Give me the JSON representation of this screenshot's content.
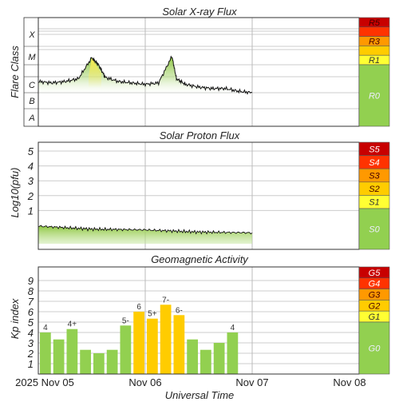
{
  "chart_data": [
    {
      "type": "area",
      "title": "Solar X-ray Flux",
      "ylabel": "Flare Class",
      "y_ticks": [
        "A",
        "B",
        "C",
        "M",
        "X"
      ],
      "scale_labels": [
        "R5",
        "R4",
        "R3",
        "R2",
        "R1",
        "R0"
      ],
      "scale_colors": [
        "#c80000",
        "#ff3300",
        "#ff9900",
        "#ffcc00",
        "#ffff33",
        "#92d050"
      ],
      "fill_color": "#8dc63f",
      "series": [
        {
          "x": [
            "2025-11-05 00:00",
            "2025-11-05 03:00",
            "2025-11-05 06:00",
            "2025-11-05 09:00",
            "2025-11-05 12:00",
            "2025-11-05 13:30",
            "2025-11-05 15:00",
            "2025-11-05 18:00",
            "2025-11-05 21:00",
            "2025-11-06 00:00",
            "2025-11-06 03:00",
            "2025-11-06 06:00",
            "2025-11-06 07:00",
            "2025-11-06 09:00",
            "2025-11-06 12:00",
            "2025-11-06 15:00",
            "2025-11-06 18:00",
            "2025-11-06 21:00",
            "2025-11-07 00:00"
          ],
          "values": [
            2.4,
            2.35,
            2.4,
            2.5,
            3.25,
            3.0,
            2.55,
            2.4,
            2.35,
            2.3,
            2.35,
            3.3,
            2.5,
            2.3,
            2.2,
            2.15,
            2.15,
            2.05,
            2.0
          ]
        }
      ]
    },
    {
      "type": "area",
      "title": "Solar Proton Flux",
      "ylabel": "Log10(pfu)",
      "y_ticks": [
        "1",
        "2",
        "3",
        "4",
        "5"
      ],
      "scale_labels": [
        "S5",
        "S4",
        "S3",
        "S2",
        "S1",
        "S0"
      ],
      "scale_colors": [
        "#c80000",
        "#ff3300",
        "#ff9900",
        "#ffcc00",
        "#ffff33",
        "#92d050"
      ],
      "fill_color": "#8dc63f",
      "series": [
        {
          "x": [
            "2025-11-05 00:00",
            "2025-11-05 12:00",
            "2025-11-06 00:00",
            "2025-11-06 12:00",
            "2025-11-07 00:00"
          ],
          "values": [
            -0.05,
            -0.25,
            -0.3,
            -0.45,
            -0.5
          ]
        }
      ]
    },
    {
      "type": "bar",
      "title": "Geomagnetic Activity",
      "ylabel": "Kp index",
      "y_ticks": [
        "1",
        "2",
        "3",
        "4",
        "5",
        "6",
        "7",
        "8",
        "9"
      ],
      "scale_labels": [
        "G5",
        "G4",
        "G3",
        "G2",
        "G1",
        "G0"
      ],
      "scale_colors": [
        "#c80000",
        "#ff3300",
        "#ff9900",
        "#ffcc00",
        "#ffff33",
        "#92d050"
      ],
      "bar_colors": {
        "quiet": "#92d050",
        "storm": "#ffcc00"
      },
      "x": [
        "2025-11-05 00:00",
        "2025-11-05 03:00",
        "2025-11-05 06:00",
        "2025-11-05 09:00",
        "2025-11-05 12:00",
        "2025-11-05 15:00",
        "2025-11-05 18:00",
        "2025-11-05 21:00",
        "2025-11-06 00:00",
        "2025-11-06 03:00",
        "2025-11-06 06:00",
        "2025-11-06 09:00",
        "2025-11-06 12:00",
        "2025-11-06 15:00",
        "2025-11-06 18:00",
        "2025-11-06 21:00"
      ],
      "values": [
        4.0,
        3.33,
        4.33,
        2.33,
        2.0,
        2.33,
        4.67,
        6.0,
        5.33,
        6.67,
        5.67,
        3.33,
        2.33,
        3.0,
        4.0,
        0
      ],
      "data_labels": [
        "4",
        "",
        "4+",
        "",
        "",
        "",
        "5-",
        "6",
        "5+",
        "7-",
        "6-",
        "",
        "",
        "",
        "4",
        ""
      ]
    }
  ],
  "x_axis": {
    "xlabel": "Universal Time",
    "tick_labels": [
      "2025 Nov 05",
      "Nov 06",
      "Nov 07",
      "Nov 08"
    ]
  }
}
